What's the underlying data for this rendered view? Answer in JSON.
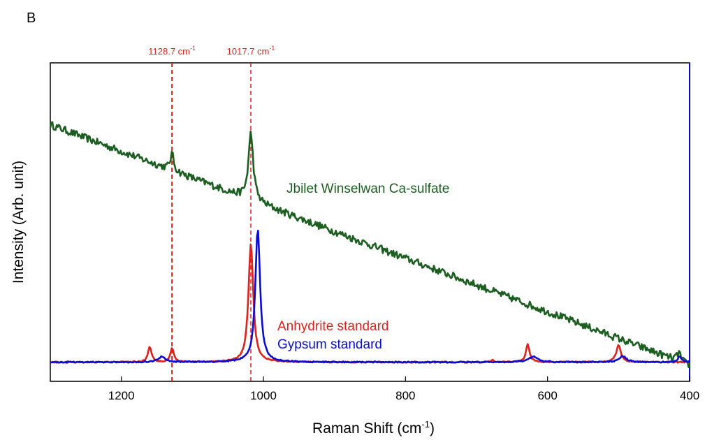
{
  "panel_label": "B",
  "chart_data": {
    "type": "line",
    "xlabel": "Raman Shift (cm",
    "xlabel_sup": "-1",
    "xlabel_tail": ")",
    "ylabel": "Intensity (Arb. unit)",
    "xlim": [
      1300,
      400
    ],
    "x_reversed": true,
    "ylim": [
      0,
      1
    ],
    "y_ticks_shown": false,
    "x_ticks": [
      1200,
      1000,
      800,
      600,
      400
    ],
    "x_tick_labels": [
      "1200",
      "1000",
      "800",
      "600",
      "400"
    ],
    "grid": false,
    "reference_lines": [
      {
        "x": 1128.7,
        "label": "1128.7 cm",
        "sup": "-1",
        "color": "#e0201c"
      },
      {
        "x": 1017.7,
        "label": "1017.7 cm",
        "sup": "-1",
        "color": "#e0201c"
      }
    ],
    "series": [
      {
        "name": "Jbilet Winselwan Ca-sulfate",
        "color": "#1b5e20",
        "baseline": {
          "x": [
            1300,
            400
          ],
          "y": [
            0.82,
            0.03
          ]
        },
        "noise": 0.012,
        "peaks": [
          {
            "x": 1128.7,
            "height": 0.055,
            "width": 3
          },
          {
            "x": 1017.7,
            "height": 0.22,
            "width": 4
          },
          {
            "x": 415,
            "height": 0.03,
            "width": 3
          }
        ]
      },
      {
        "name": "Anhydrite standard",
        "color": "#e0201c",
        "baseline": {
          "x": [
            1300,
            400
          ],
          "y": [
            0.04,
            0.04
          ]
        },
        "noise": 0.002,
        "peaks": [
          {
            "x": 1160,
            "height": 0.05,
            "width": 3
          },
          {
            "x": 1128.7,
            "height": 0.045,
            "width": 3
          },
          {
            "x": 1017.7,
            "height": 0.39,
            "width": 4
          },
          {
            "x": 677,
            "height": 0.006,
            "width": 3
          },
          {
            "x": 628,
            "height": 0.06,
            "width": 3
          },
          {
            "x": 500,
            "height": 0.055,
            "width": 4
          }
        ]
      },
      {
        "name": "Gypsum standard",
        "color": "#0b0bd6",
        "baseline": {
          "x": [
            1300,
            400
          ],
          "y": [
            0.04,
            0.04
          ]
        },
        "noise": 0.002,
        "peaks": [
          {
            "x": 1143,
            "height": 0.018,
            "width": 6
          },
          {
            "x": 1008,
            "height": 0.44,
            "width": 4
          },
          {
            "x": 620,
            "height": 0.018,
            "width": 8
          },
          {
            "x": 494,
            "height": 0.02,
            "width": 6
          },
          {
            "x": 414,
            "height": 0.02,
            "width": 3
          }
        ]
      }
    ]
  }
}
